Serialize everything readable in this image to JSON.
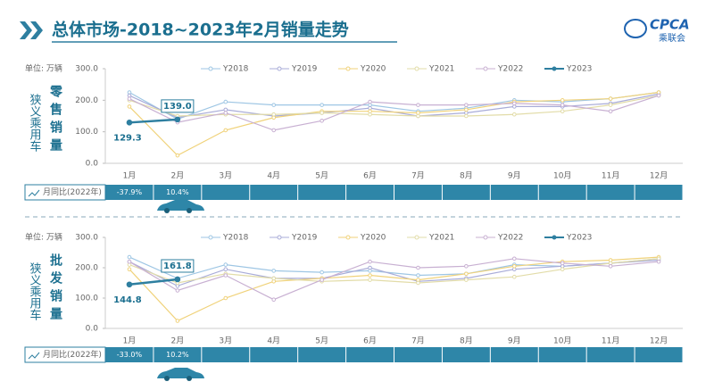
{
  "header": {
    "title": "总体市场-2018~2023年2月销量走势",
    "logo": "CPCA",
    "logo_sub": "乘联会"
  },
  "chart_data": [
    {
      "type": "line",
      "unit": "单位: 万辆",
      "group_label": "狭义乘用车",
      "metric_label": "零售销量",
      "categories": [
        "1月",
        "2月",
        "3月",
        "4月",
        "5月",
        "6月",
        "7月",
        "8月",
        "9月",
        "10月",
        "11月",
        "12月"
      ],
      "ylim": [
        0,
        300
      ],
      "yticks": [
        {
          "value": 0,
          "label": "0.0"
        },
        {
          "value": 100,
          "label": "100.0"
        },
        {
          "value": 200,
          "label": "200.0"
        },
        {
          "value": 300,
          "label": "300.0"
        }
      ],
      "series": [
        {
          "name": "Y2018",
          "color": "#9ec6e4",
          "values": [
            225,
            140,
            195,
            185,
            185,
            185,
            165,
            175,
            200,
            195,
            205,
            225
          ]
        },
        {
          "name": "Y2019",
          "color": "#a9acd8",
          "values": [
            215,
            145,
            170,
            150,
            160,
            175,
            150,
            160,
            180,
            180,
            190,
            220
          ]
        },
        {
          "name": "Y2020",
          "color": "#f0d27a",
          "values": [
            180,
            25,
            105,
            145,
            165,
            165,
            160,
            170,
            195,
            200,
            205,
            225
          ]
        },
        {
          "name": "Y2021",
          "color": "#e2dca8",
          "values": [
            200,
            150,
            155,
            155,
            160,
            155,
            150,
            150,
            155,
            165,
            185,
            215
          ]
        },
        {
          "name": "Y2022",
          "color": "#c8b0d2",
          "values": [
            205,
            130,
            160,
            105,
            135,
            195,
            185,
            185,
            190,
            185,
            165,
            215
          ]
        },
        {
          "name": "Y2023",
          "color": "#2e7fa0",
          "values": [
            129.3,
            139.0,
            null,
            null,
            null,
            null,
            null,
            null,
            null,
            null,
            null,
            null
          ],
          "value_labels": [
            "129.3",
            "139.0"
          ]
        }
      ],
      "yoy_label": "月同比(2022年)",
      "yoy_values": [
        -37.9,
        10.4
      ],
      "yoy_labels": [
        "-37.9%",
        "10.4%"
      ]
    },
    {
      "type": "line",
      "unit": "单位: 万辆",
      "group_label": "狭义乘用车",
      "metric_label": "批发销量",
      "categories": [
        "1月",
        "2月",
        "3月",
        "4月",
        "5月",
        "6月",
        "7月",
        "8月",
        "9月",
        "10月",
        "11月",
        "12月"
      ],
      "ylim": [
        0,
        300
      ],
      "yticks": [
        {
          "value": 0,
          "label": "0.0"
        },
        {
          "value": 100,
          "label": "100.0"
        },
        {
          "value": 200,
          "label": "200.0"
        },
        {
          "value": 300,
          "label": "300.0"
        }
      ],
      "series": [
        {
          "name": "Y2018",
          "color": "#9ec6e4",
          "values": [
            235,
            165,
            210,
            190,
            185,
            190,
            175,
            180,
            210,
            205,
            215,
            230
          ]
        },
        {
          "name": "Y2019",
          "color": "#a9acd8",
          "values": [
            220,
            140,
            195,
            165,
            165,
            200,
            155,
            165,
            195,
            205,
            215,
            225
          ]
        },
        {
          "name": "Y2020",
          "color": "#f0d27a",
          "values": [
            195,
            25,
            100,
            155,
            165,
            175,
            160,
            180,
            205,
            220,
            225,
            235
          ]
        },
        {
          "name": "Y2021",
          "color": "#e2dca8",
          "values": [
            210,
            150,
            180,
            165,
            155,
            160,
            150,
            160,
            170,
            195,
            215,
            230
          ]
        },
        {
          "name": "Y2022",
          "color": "#c8b0d2",
          "values": [
            220,
            125,
            175,
            95,
            160,
            220,
            200,
            205,
            230,
            215,
            205,
            220
          ]
        },
        {
          "name": "Y2023",
          "color": "#2e7fa0",
          "values": [
            144.8,
            161.8,
            null,
            null,
            null,
            null,
            null,
            null,
            null,
            null,
            null,
            null
          ],
          "value_labels": [
            "144.8",
            "161.8"
          ]
        }
      ],
      "yoy_label": "月同比(2022年)",
      "yoy_values": [
        -33.0,
        10.2
      ],
      "yoy_labels": [
        "-33.0%",
        "10.2%"
      ]
    }
  ]
}
